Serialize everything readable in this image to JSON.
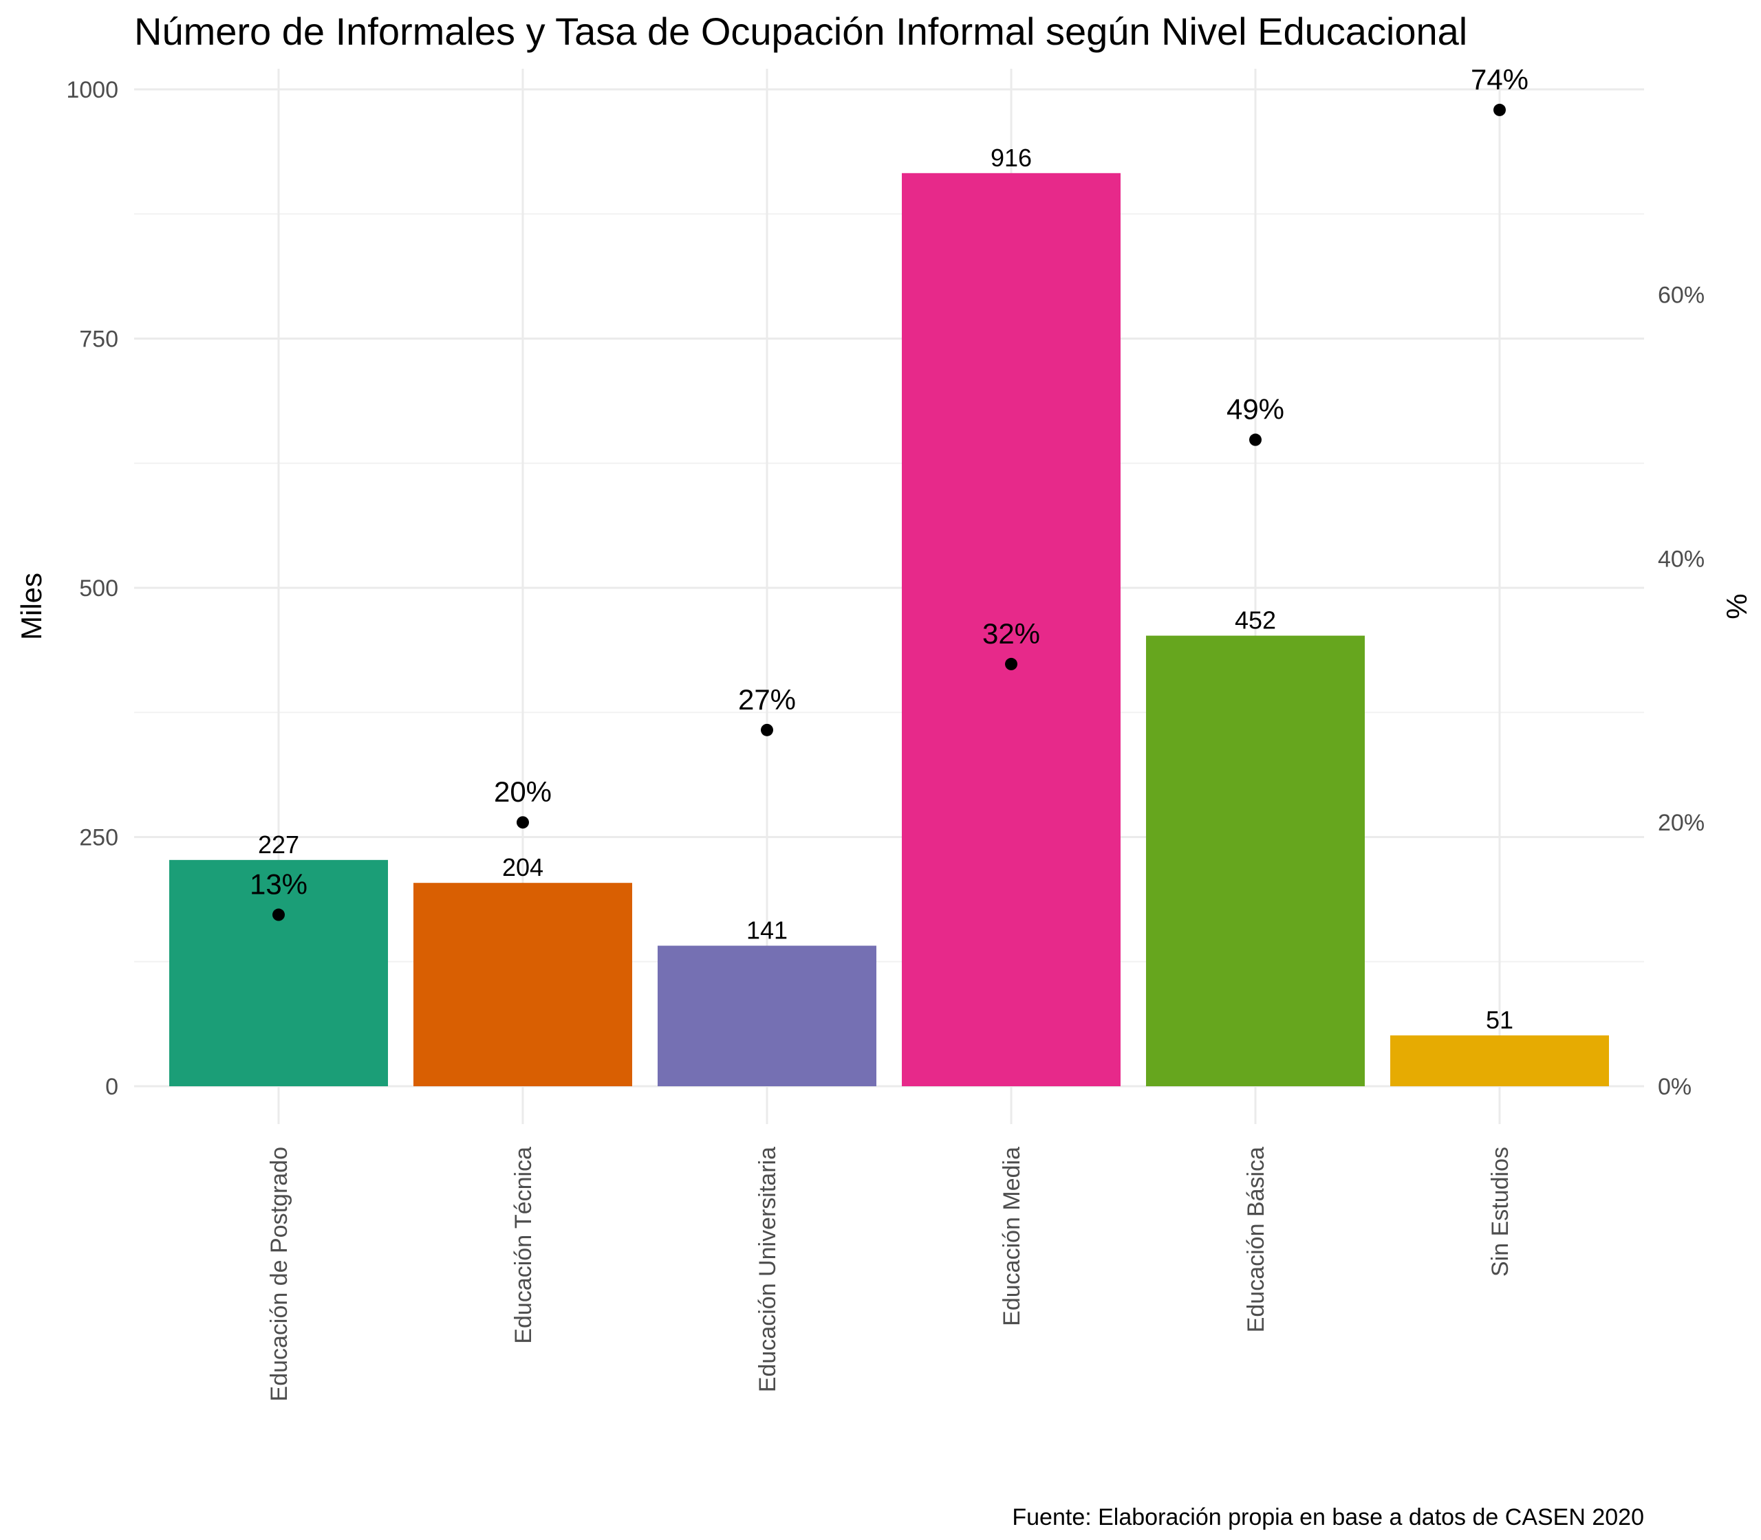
{
  "chart_data": {
    "type": "bar",
    "title": "Número de Informales y Tasa de Ocupación Informal según Nivel Educacional",
    "ylabel": "Miles",
    "y2label": "%",
    "caption": "Fuente: Elaboración propia en base a datos de CASEN 2020",
    "categories": [
      "Educación de Postgrado",
      "Educación Técnica",
      "Educación Universitaria",
      "Educación Media",
      "Educación Básica",
      "Sin Estudios"
    ],
    "series": [
      {
        "type": "bar",
        "axis": "left",
        "values": [
          227,
          204,
          141,
          916,
          452,
          51
        ],
        "labels": [
          "227",
          "204",
          "141",
          "916",
          "452",
          "51"
        ],
        "colors": [
          "#1b9e77",
          "#d95f02",
          "#7570b3",
          "#e7298a",
          "#66a61e",
          "#e6ab02"
        ]
      },
      {
        "type": "scatter",
        "axis": "right",
        "values": [
          13,
          20,
          27,
          32,
          49,
          74
        ],
        "labels": [
          "13%",
          "20%",
          "27%",
          "32%",
          "49%",
          "74%"
        ],
        "color": "#000000"
      }
    ],
    "ylim": [
      0,
      1000
    ],
    "yticks": [
      0,
      250,
      500,
      750,
      1000
    ],
    "ytick_labels": [
      "0",
      "250",
      "500",
      "750",
      "1000"
    ],
    "y2lim": [
      0,
      76.6
    ],
    "y2ticks": [
      0,
      20,
      40,
      60
    ],
    "y2tick_labels": [
      "0%",
      "20%",
      "40%",
      "60%"
    ],
    "grid": true,
    "legend": "none"
  }
}
